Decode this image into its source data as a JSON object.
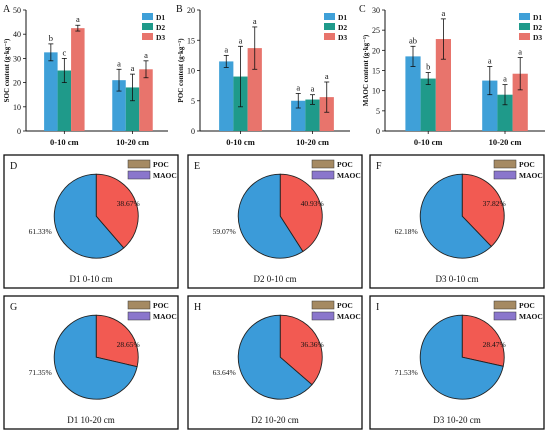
{
  "colors": {
    "D1": "#3fa0d8",
    "D2": "#1f9a8a",
    "D3": "#e8746c",
    "POC": "#f25a52",
    "MAOC": "#3b9bd9",
    "POC_legend": "#a58a63",
    "MAOC_legend": "#8a76cc"
  },
  "chart_data": [
    {
      "type": "bar",
      "panel": "A",
      "ylabel": "SOC content (g·kg⁻¹)",
      "ylim": [
        0,
        50
      ],
      "yticks": [
        "0",
        "10",
        "20",
        "30",
        "40",
        "50"
      ],
      "categories": [
        "0-10 cm",
        "10-20 cm"
      ],
      "legend": "top-right",
      "series": [
        {
          "name": "D1",
          "values": [
            32.5,
            21.0
          ],
          "errors": [
            3.5,
            4.5
          ],
          "letters": [
            "b",
            "a"
          ]
        },
        {
          "name": "D2",
          "values": [
            25.0,
            18.0
          ],
          "errors": [
            5.0,
            5.5
          ],
          "letters": [
            "c",
            "a"
          ]
        },
        {
          "name": "D3",
          "values": [
            42.5,
            25.5
          ],
          "errors": [
            1.2,
            3.5
          ],
          "letters": [
            "a",
            "a"
          ]
        }
      ]
    },
    {
      "type": "bar",
      "panel": "B",
      "ylabel": "POC content (g·kg⁻¹)",
      "ylim": [
        0,
        20
      ],
      "yticks": [
        "0",
        "5",
        "10",
        "15",
        "20"
      ],
      "categories": [
        "0-10 cm",
        "10-20 cm"
      ],
      "legend": "top-right",
      "series": [
        {
          "name": "D1",
          "values": [
            11.5,
            5.0
          ],
          "errors": [
            1.0,
            1.2
          ],
          "letters": [
            "a",
            "a"
          ]
        },
        {
          "name": "D2",
          "values": [
            9.0,
            5.2
          ],
          "errors": [
            5.0,
            0.8
          ],
          "letters": [
            "a",
            "a"
          ]
        },
        {
          "name": "D3",
          "values": [
            13.7,
            5.6
          ],
          "errors": [
            3.5,
            2.5
          ],
          "letters": [
            "a",
            "a"
          ]
        }
      ]
    },
    {
      "type": "bar",
      "panel": "C",
      "ylabel": "MAOC content (g·kg⁻¹)",
      "ylim": [
        0,
        30
      ],
      "yticks": [
        "0",
        "5",
        "10",
        "15",
        "20",
        "25",
        "30"
      ],
      "categories": [
        "0-10 cm",
        "10-20 cm"
      ],
      "legend": "top-right",
      "series": [
        {
          "name": "D1",
          "values": [
            18.5,
            12.5
          ],
          "errors": [
            2.5,
            3.5
          ],
          "letters": [
            "ab",
            "a"
          ]
        },
        {
          "name": "D2",
          "values": [
            13.0,
            9.0
          ],
          "errors": [
            1.5,
            2.5
          ],
          "letters": [
            "b",
            "a"
          ]
        },
        {
          "name": "D3",
          "values": [
            22.8,
            14.2
          ],
          "errors": [
            5.0,
            4.0
          ],
          "letters": [
            "a",
            "a"
          ]
        }
      ]
    },
    {
      "type": "pie",
      "panel": "D",
      "caption": "D1 0-10 cm",
      "slices": [
        {
          "name": "POC",
          "value": 38.67,
          "label": "38.67%"
        },
        {
          "name": "MAOC",
          "value": 61.33,
          "label": "61.33%"
        }
      ]
    },
    {
      "type": "pie",
      "panel": "E",
      "caption": "D2 0-10 cm",
      "slices": [
        {
          "name": "POC",
          "value": 40.93,
          "label": "40.93%"
        },
        {
          "name": "MAOC",
          "value": 59.07,
          "label": "59.07%"
        }
      ]
    },
    {
      "type": "pie",
      "panel": "F",
      "caption": "D3 0-10 cm",
      "slices": [
        {
          "name": "POC",
          "value": 37.82,
          "label": "37.82%"
        },
        {
          "name": "MAOC",
          "value": 62.18,
          "label": "62.18%"
        }
      ]
    },
    {
      "type": "pie",
      "panel": "G",
      "caption": "D1 10-20 cm",
      "slices": [
        {
          "name": "POC",
          "value": 28.65,
          "label": "28.65%"
        },
        {
          "name": "MAOC",
          "value": 71.35,
          "label": "71.35%"
        }
      ]
    },
    {
      "type": "pie",
      "panel": "H",
      "caption": "D2 10-20 cm",
      "slices": [
        {
          "name": "POC",
          "value": 36.36,
          "label": "36.36%"
        },
        {
          "name": "MAOC",
          "value": 63.64,
          "label": "63.64%"
        }
      ]
    },
    {
      "type": "pie",
      "panel": "I",
      "caption": "D3 10-20 cm",
      "slices": [
        {
          "name": "POC",
          "value": 28.47,
          "label": "28.47%"
        },
        {
          "name": "MAOC",
          "value": 71.53,
          "label": "71.53%"
        }
      ]
    }
  ]
}
